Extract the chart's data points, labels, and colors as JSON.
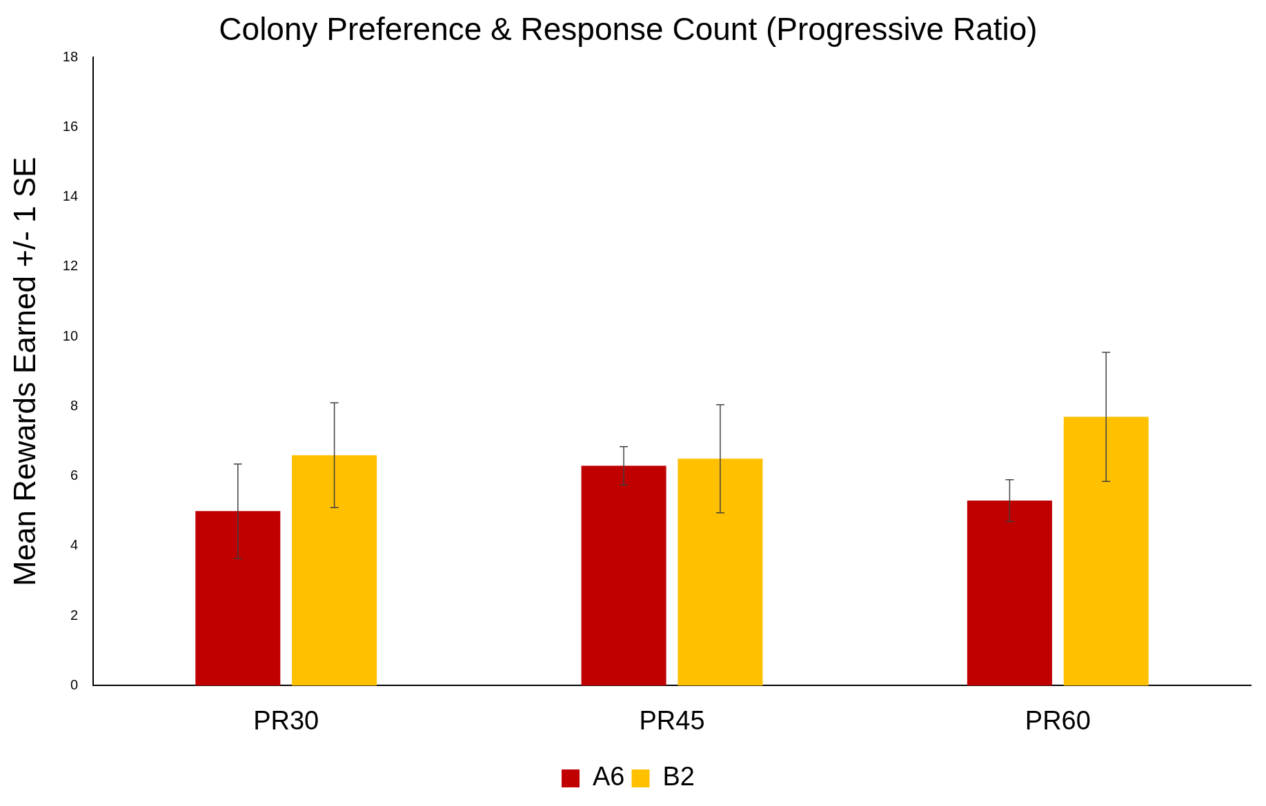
{
  "chart_data": {
    "type": "bar",
    "title": "Colony Preference & Response Count (Progressive Ratio)",
    "ylabel": "Mean Rewards Earned +/- 1 SE",
    "categories": [
      "PR30",
      "PR45",
      "PR60"
    ],
    "series": [
      {
        "name": "A6",
        "color": "#c00000",
        "values": [
          5.0,
          6.3,
          5.3
        ],
        "errors": [
          1.35,
          0.55,
          0.6
        ]
      },
      {
        "name": "B2",
        "color": "#ffc000",
        "values": [
          6.6,
          6.5,
          7.7
        ],
        "errors": [
          1.5,
          1.55,
          1.85
        ]
      }
    ],
    "ylim": [
      0,
      18
    ],
    "yticks": [
      0,
      2,
      4,
      6,
      8,
      10,
      12,
      14,
      16,
      18
    ],
    "grid": false,
    "legend": "bottom"
  }
}
